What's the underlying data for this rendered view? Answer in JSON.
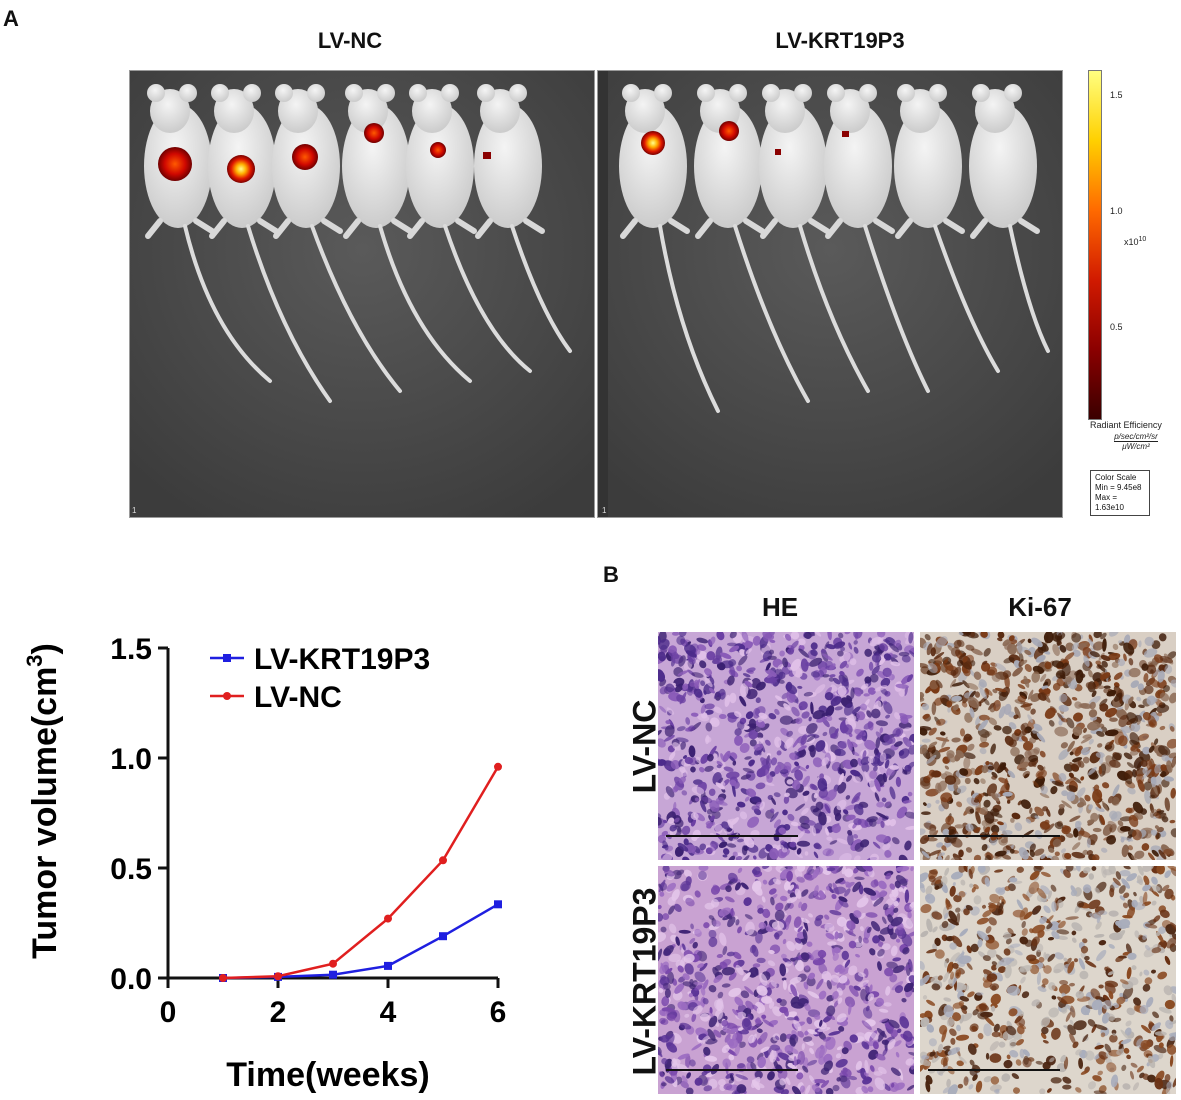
{
  "panelA": {
    "letter": "A",
    "group_left": "LV-NC",
    "group_right": "LV-KRT19P3",
    "corner_left": "1",
    "corner_right": "1",
    "colorbar": {
      "ticks": [
        "1.5",
        "1.0",
        "0.5"
      ],
      "exponent": "x10",
      "exponent_power": "10",
      "unit_title": "Radiant Efficiency",
      "unit_numerator": "p/sec/cm²/sr",
      "unit_denominator": "μW/cm²",
      "scale_title": "Color Scale",
      "scale_min": "Min = 9.45e8",
      "scale_max": "Max = 1.63e10",
      "colors": [
        "#3a0000",
        "#8b0000",
        "#d11a00",
        "#ff6a00",
        "#ffd000",
        "#ffff80"
      ]
    }
  },
  "panelB": {
    "letter": "B",
    "col_he": "HE",
    "col_ki67": "Ki-67",
    "row_nc": "LV-NC",
    "row_krt": "LV-KRT19P3"
  },
  "chart_data": {
    "type": "line",
    "xlabel": "Time(weeks)",
    "ylabel_main": "Tumor volume(cm",
    "ylabel_sup": "3",
    "ylabel_close": ")",
    "xlim": [
      0,
      6
    ],
    "ylim": [
      0,
      1.5
    ],
    "xticks": [
      0,
      2,
      4,
      6
    ],
    "yticks": [
      0.0,
      0.5,
      1.0,
      1.5
    ],
    "xtick_labels": [
      "0",
      "2",
      "4",
      "6"
    ],
    "ytick_labels": [
      "0.0",
      "0.5",
      "1.0",
      "1.5"
    ],
    "legend": "top-left",
    "series": [
      {
        "name": "LV-KRT19P3",
        "color": "#1f1fe0",
        "marker": "square",
        "x": [
          1,
          2,
          3,
          4,
          5,
          6
        ],
        "values": [
          0.0,
          0.005,
          0.015,
          0.055,
          0.19,
          0.335
        ]
      },
      {
        "name": "LV-NC",
        "color": "#e01f1f",
        "marker": "circle",
        "x": [
          1,
          2,
          3,
          4,
          5,
          6
        ],
        "values": [
          0.0,
          0.008,
          0.065,
          0.27,
          0.535,
          0.96
        ]
      }
    ]
  }
}
